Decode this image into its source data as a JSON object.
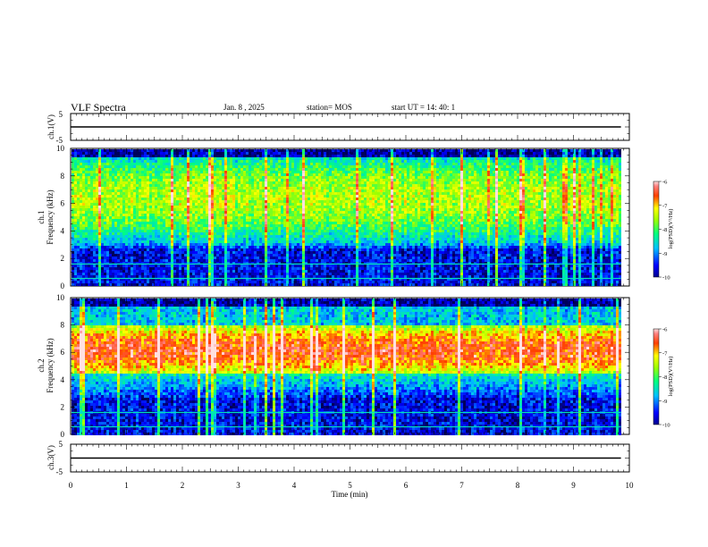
{
  "header": {
    "title": "VLF Spectra",
    "date": "Jan. 8 , 2025",
    "station": "station= MOS",
    "start_ut": "start UT = 14: 40: 1"
  },
  "colorbar": {
    "label": "log(PSD)(V²/Hz)",
    "ticks": [
      "-6",
      "-7",
      "-8",
      "-9",
      "-10"
    ],
    "range": [
      -10,
      -6
    ]
  },
  "chart_data": [
    {
      "type": "line",
      "panel": "ch.1 waveform",
      "ylabel": "ch.1(V)",
      "ylim": [
        -5,
        5
      ],
      "yticks": [
        "5",
        "-5"
      ],
      "x": [
        0,
        9.85
      ],
      "y": [
        0,
        0
      ]
    },
    {
      "type": "heatmap",
      "panel": "ch.1 spectrogram",
      "ylabel": "ch.1\nFrequency (kHz)",
      "ylim": [
        0,
        10
      ],
      "yticks": [
        "0",
        "2",
        "4",
        "6",
        "8",
        "10"
      ],
      "x_range_min": [
        0,
        9.85
      ],
      "dominant_band_khz": [
        3.5,
        9.5
      ],
      "lines_khz": [
        0.55,
        1.6
      ],
      "peak_log_psd": -7.5
    },
    {
      "type": "heatmap",
      "panel": "ch.2 spectrogram",
      "ylabel": "ch.2\nFrequency (kHz)",
      "ylim": [
        0,
        10
      ],
      "yticks": [
        "0",
        "2",
        "4",
        "6",
        "8",
        "10"
      ],
      "x_range_min": [
        0,
        9.85
      ],
      "dominant_band_khz": [
        4.5,
        8
      ],
      "lines_khz": [
        0.55,
        1.6
      ],
      "peak_log_psd": -6.5
    },
    {
      "type": "line",
      "panel": "ch.3 waveform",
      "ylabel": "ch.3(V)",
      "ylim": [
        -5,
        5
      ],
      "yticks": [
        "5",
        "-5"
      ],
      "x": [
        0,
        9.85
      ],
      "y": [
        0,
        0
      ]
    }
  ],
  "xaxis": {
    "label": "Time (min)",
    "ticks": [
      "0",
      "1",
      "2",
      "3",
      "4",
      "5",
      "6",
      "7",
      "8",
      "9",
      "10"
    ],
    "xlim": [
      0,
      10
    ]
  }
}
